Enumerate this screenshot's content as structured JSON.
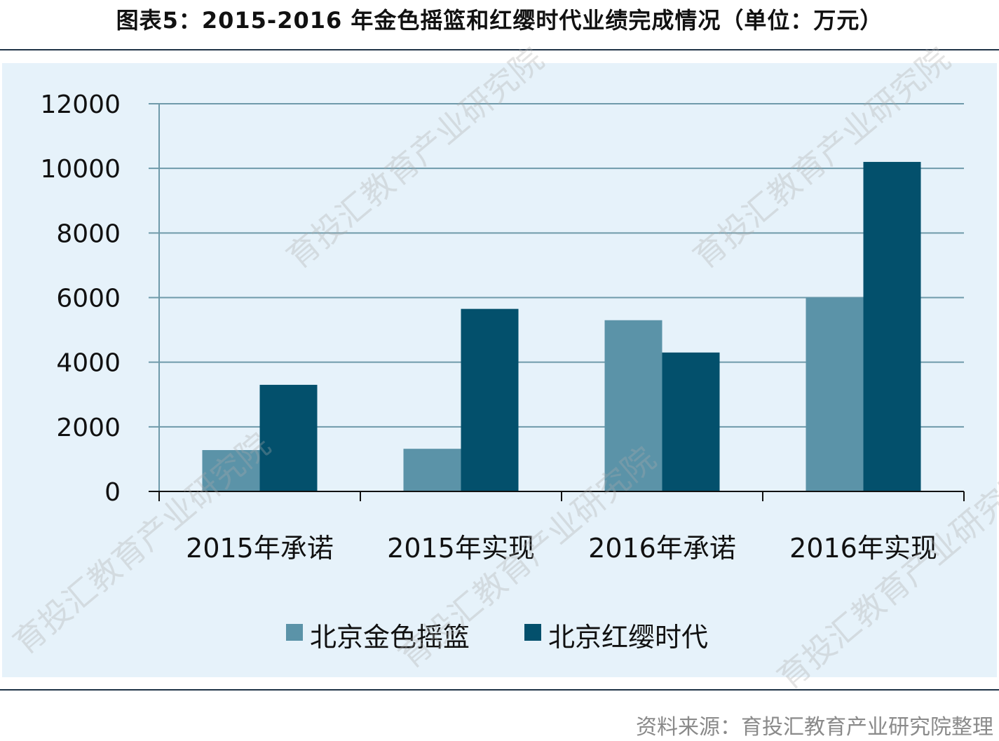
{
  "title": "图表5：2015-2016 年金色摇篮和红缨时代业绩完成情况（单位：万元）",
  "source": "资料来源：育投汇教育产业研究院整理",
  "watermark": "育投汇教育产业研究院",
  "colors": {
    "series1": "#5b93a8",
    "series2": "#03506c",
    "grid": "#6f9aaa",
    "panel": "#e6f2fa"
  },
  "chart_data": {
    "type": "bar",
    "title": "",
    "xlabel": "",
    "ylabel": "",
    "categories": [
      "2015年承诺",
      "2015年实现",
      "2016年承诺",
      "2016年实现"
    ],
    "series": [
      {
        "name": "北京金色摇篮",
        "values": [
          1280,
          1320,
          5300,
          6000
        ]
      },
      {
        "name": "北京红缨时代",
        "values": [
          3300,
          5650,
          4300,
          10200
        ]
      }
    ],
    "ylim": [
      0,
      12000
    ],
    "yticks": [
      "0",
      "2000",
      "4000",
      "6000",
      "8000",
      "10000",
      "12000"
    ],
    "grid": true,
    "legend": "bottom"
  }
}
